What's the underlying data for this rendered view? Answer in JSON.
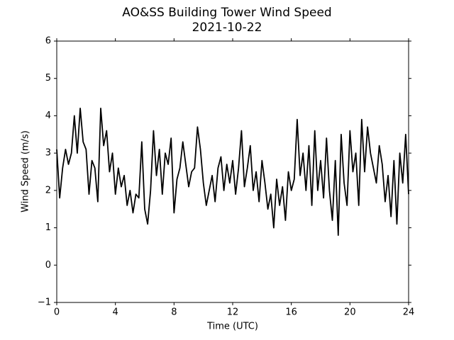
{
  "chart_data": {
    "type": "line",
    "title": "AO&SS Building Tower Wind Speed",
    "subtitle": "2021-10-22",
    "x_label": "Time (UTC)",
    "y_label": "Wind Speed (m/s)",
    "color": "#000000",
    "xlim": [
      0,
      24
    ],
    "xticks": [
      0,
      4,
      8,
      12,
      16,
      20,
      24
    ],
    "ylim": [
      -1,
      6
    ],
    "yticks": [
      {
        "value": -1,
        "label": "−1"
      },
      0,
      1,
      2,
      3,
      4,
      5,
      6
    ],
    "x": [
      0,
      0.2,
      0.4,
      0.6,
      0.8,
      1,
      1.2,
      1.4,
      1.6,
      1.8,
      2,
      2.2,
      2.4,
      2.6,
      2.8,
      3,
      3.2,
      3.4,
      3.6,
      3.8,
      4,
      4.2,
      4.4,
      4.6,
      4.8,
      5,
      5.2,
      5.4,
      5.6,
      5.8,
      6,
      6.2,
      6.4,
      6.6,
      6.8,
      7,
      7.2,
      7.4,
      7.6,
      7.8,
      8,
      8.2,
      8.4,
      8.6,
      8.8,
      9,
      9.2,
      9.4,
      9.6,
      9.8,
      10,
      10.2,
      10.4,
      10.6,
      10.8,
      11,
      11.2,
      11.4,
      11.6,
      11.8,
      12,
      12.2,
      12.4,
      12.6,
      12.8,
      13,
      13.2,
      13.4,
      13.6,
      13.8,
      14,
      14.2,
      14.4,
      14.6,
      14.8,
      15,
      15.2,
      15.4,
      15.6,
      15.8,
      16,
      16.2,
      16.4,
      16.6,
      16.8,
      17,
      17.2,
      17.4,
      17.6,
      17.8,
      18,
      18.2,
      18.4,
      18.6,
      18.8,
      19,
      19.2,
      19.4,
      19.6,
      19.8,
      20,
      20.2,
      20.4,
      20.6,
      20.8,
      21,
      21.2,
      21.4,
      21.6,
      21.8,
      22,
      22.2,
      22.4,
      22.6,
      22.8,
      23,
      23.2,
      23.4,
      23.6,
      23.8,
      24
    ],
    "values": [
      3.1,
      1.8,
      2.6,
      3.1,
      2.7,
      3.0,
      4.0,
      3.0,
      4.2,
      3.3,
      3.1,
      1.9,
      2.8,
      2.6,
      1.7,
      4.2,
      3.2,
      3.6,
      2.5,
      3.0,
      1.9,
      2.6,
      2.1,
      2.4,
      1.6,
      2.0,
      1.4,
      1.9,
      1.8,
      3.3,
      1.5,
      1.1,
      2.0,
      3.6,
      2.4,
      3.1,
      1.9,
      3.0,
      2.7,
      3.4,
      1.4,
      2.3,
      2.6,
      3.3,
      2.7,
      2.1,
      2.5,
      2.6,
      3.7,
      3.1,
      2.2,
      1.6,
      2.0,
      2.4,
      1.7,
      2.6,
      2.9,
      2.0,
      2.7,
      2.2,
      2.8,
      1.9,
      2.6,
      3.6,
      2.1,
      2.6,
      3.2,
      2.0,
      2.5,
      1.7,
      2.8,
      2.2,
      1.5,
      1.9,
      1.0,
      2.3,
      1.6,
      2.1,
      1.2,
      2.5,
      2.0,
      2.3,
      3.9,
      2.4,
      3.0,
      2.0,
      3.2,
      1.6,
      3.6,
      2.0,
      2.8,
      1.8,
      3.4,
      2.0,
      1.2,
      2.8,
      0.8,
      3.5,
      2.2,
      1.6,
      3.6,
      2.5,
      3.0,
      1.6,
      3.9,
      2.5,
      3.7,
      3.0,
      2.6,
      2.2,
      3.2,
      2.7,
      1.7,
      2.4,
      1.3,
      2.8,
      1.1,
      3.0,
      2.2,
      3.5,
      1.9
    ]
  }
}
